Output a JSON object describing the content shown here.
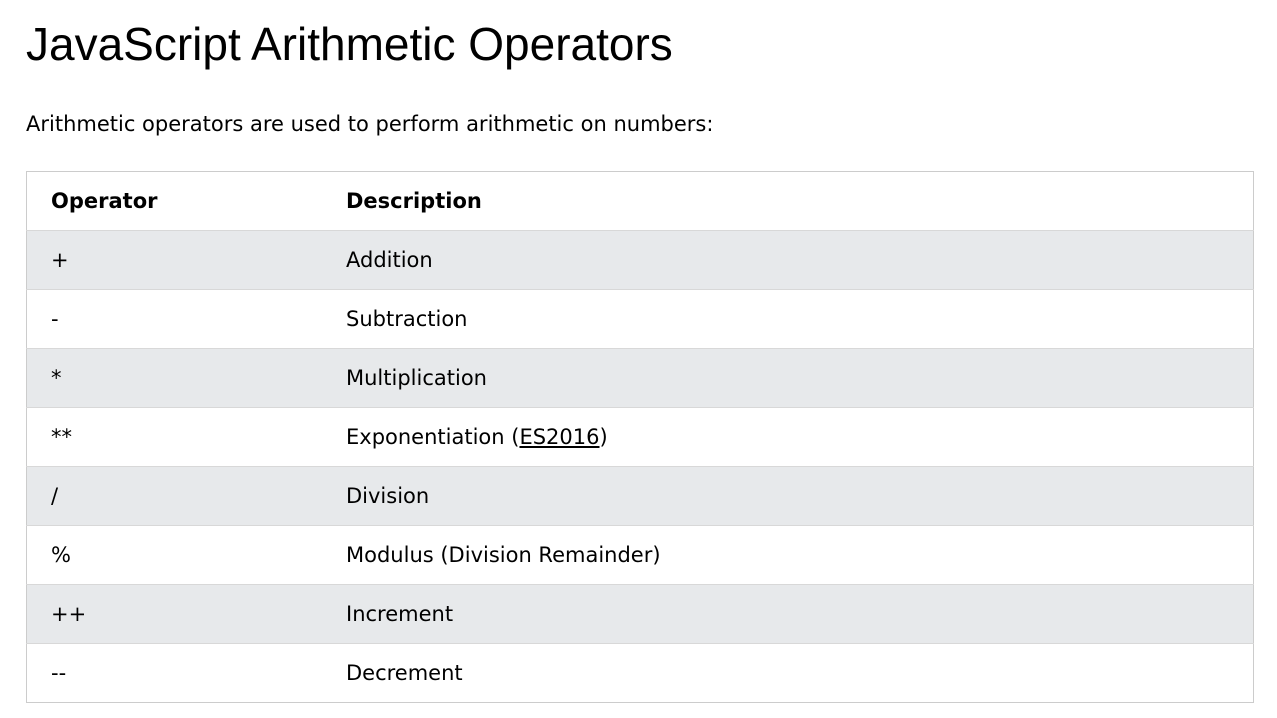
{
  "page": {
    "title": "JavaScript Arithmetic Operators",
    "intro": "Arithmetic operators are used to perform arithmetic on numbers:"
  },
  "table": {
    "headers": {
      "operator": "Operator",
      "description": "Description"
    },
    "rows": [
      {
        "operator": "+",
        "description": "Addition"
      },
      {
        "operator": "-",
        "description": "Subtraction"
      },
      {
        "operator": "*",
        "description": "Multiplication"
      },
      {
        "operator": "**",
        "description_prefix": "Exponentiation (",
        "description_link": "ES2016",
        "description_suffix": ")"
      },
      {
        "operator": "/",
        "description": "Division"
      },
      {
        "operator": "%",
        "description": "Modulus (Division Remainder)"
      },
      {
        "operator": "++",
        "description": "Increment"
      },
      {
        "operator": "--",
        "description": "Decrement"
      }
    ]
  },
  "colors": {
    "striped_row": "#e7e9eb",
    "table_border": "#cccccc"
  }
}
